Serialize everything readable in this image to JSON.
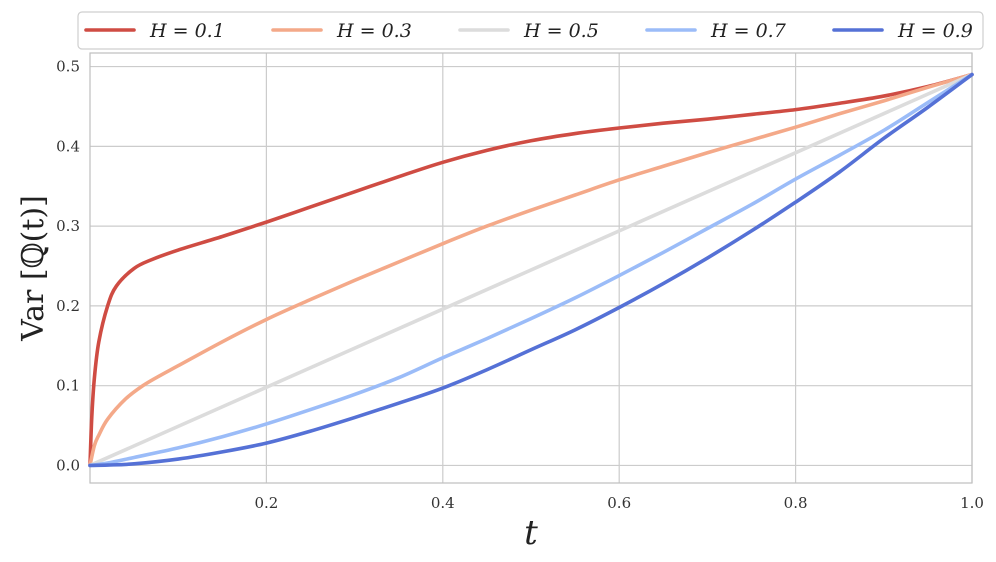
{
  "chart_data": {
    "type": "line",
    "title": "",
    "xlabel": "t",
    "ylabel": "Var [ℚ(t)]",
    "xlim": [
      0.0,
      1.0
    ],
    "ylim": [
      -0.022,
      0.517
    ],
    "xticks": [
      {
        "value": 0.2,
        "label": "0.2"
      },
      {
        "value": 0.4,
        "label": "0.4"
      },
      {
        "value": 0.6,
        "label": "0.6"
      },
      {
        "value": 0.8,
        "label": "0.8"
      },
      {
        "value": 1.0,
        "label": "1.0"
      }
    ],
    "yticks": [
      {
        "value": 0.0,
        "label": "0.0"
      },
      {
        "value": 0.1,
        "label": "0.1"
      },
      {
        "value": 0.2,
        "label": "0.2"
      },
      {
        "value": 0.3,
        "label": "0.3"
      },
      {
        "value": 0.4,
        "label": "0.4"
      },
      {
        "value": 0.5,
        "label": "0.5"
      }
    ],
    "grid": true,
    "legend_position": "top",
    "series": [
      {
        "name": "H = 0.1",
        "color": "#cf4c43",
        "x": [
          0.0,
          0.002,
          0.005,
          0.01,
          0.02,
          0.03,
          0.05,
          0.07,
          0.1,
          0.15,
          0.2,
          0.25,
          0.3,
          0.35,
          0.4,
          0.45,
          0.5,
          0.55,
          0.6,
          0.65,
          0.7,
          0.75,
          0.8,
          0.85,
          0.9,
          0.95,
          1.0
        ],
        "y": [
          0.0,
          0.06,
          0.11,
          0.155,
          0.2,
          0.225,
          0.247,
          0.258,
          0.27,
          0.287,
          0.305,
          0.324,
          0.343,
          0.362,
          0.38,
          0.395,
          0.407,
          0.416,
          0.423,
          0.429,
          0.434,
          0.44,
          0.446,
          0.454,
          0.463,
          0.475,
          0.49
        ]
      },
      {
        "name": "H = 0.3",
        "color": "#f4a989",
        "x": [
          0.0,
          0.005,
          0.01,
          0.02,
          0.04,
          0.06,
          0.08,
          0.1,
          0.15,
          0.2,
          0.25,
          0.3,
          0.35,
          0.4,
          0.45,
          0.5,
          0.55,
          0.6,
          0.65,
          0.7,
          0.75,
          0.8,
          0.85,
          0.9,
          0.95,
          1.0
        ],
        "y": [
          0.0,
          0.025,
          0.038,
          0.058,
          0.083,
          0.1,
          0.113,
          0.125,
          0.155,
          0.183,
          0.208,
          0.232,
          0.255,
          0.278,
          0.3,
          0.32,
          0.339,
          0.358,
          0.375,
          0.392,
          0.408,
          0.424,
          0.441,
          0.457,
          0.474,
          0.49
        ]
      },
      {
        "name": "H = 0.5",
        "color": "#dcdcdc",
        "x": [
          0.0,
          1.0
        ],
        "y": [
          0.0,
          0.49
        ]
      },
      {
        "name": "H = 0.7",
        "color": "#9bbcf8",
        "x": [
          0.0,
          0.02,
          0.05,
          0.1,
          0.15,
          0.2,
          0.25,
          0.3,
          0.35,
          0.4,
          0.45,
          0.5,
          0.55,
          0.6,
          0.65,
          0.7,
          0.75,
          0.8,
          0.85,
          0.9,
          0.95,
          1.0
        ],
        "y": [
          0.0,
          0.003,
          0.01,
          0.022,
          0.036,
          0.052,
          0.07,
          0.089,
          0.11,
          0.135,
          0.159,
          0.184,
          0.21,
          0.238,
          0.267,
          0.297,
          0.327,
          0.359,
          0.389,
          0.42,
          0.455,
          0.49
        ]
      },
      {
        "name": "H = 0.9",
        "color": "#5571d6",
        "x": [
          0.0,
          0.02,
          0.05,
          0.1,
          0.15,
          0.2,
          0.25,
          0.3,
          0.35,
          0.4,
          0.45,
          0.5,
          0.55,
          0.6,
          0.65,
          0.7,
          0.75,
          0.8,
          0.85,
          0.9,
          0.95,
          1.0
        ],
        "y": [
          0.0,
          0.0005,
          0.002,
          0.008,
          0.017,
          0.028,
          0.043,
          0.06,
          0.078,
          0.097,
          0.12,
          0.145,
          0.17,
          0.198,
          0.228,
          0.26,
          0.294,
          0.33,
          0.368,
          0.41,
          0.449,
          0.49
        ]
      }
    ]
  }
}
